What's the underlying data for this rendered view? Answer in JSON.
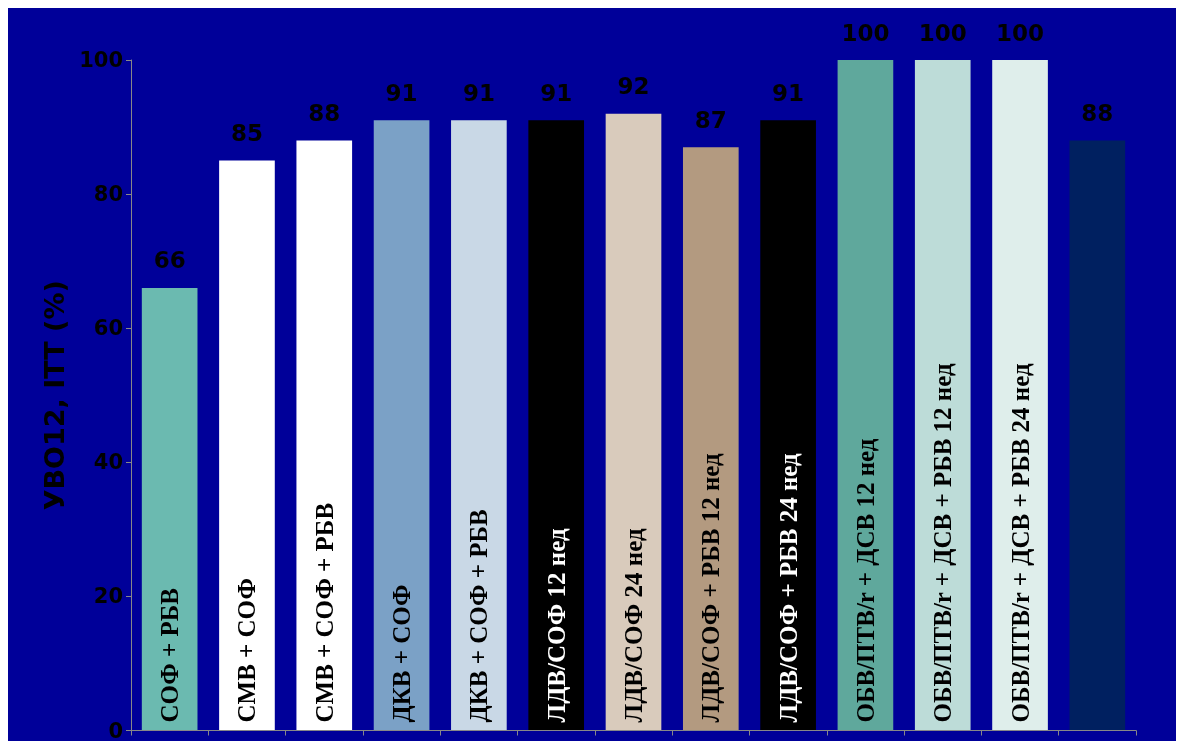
{
  "chart_data": {
    "type": "bar",
    "ylabel": "УВО12, ITT (%)",
    "categories": [
      "СОФ + РБВ",
      "СМВ + СОФ",
      "СМВ + СОФ + РБВ",
      "ДКВ + СОФ",
      "ДКВ + СОФ + РБВ",
      "ЛДВ/СОФ 12 нед",
      "ЛДВ/СОФ 24 нед",
      "ЛДВ/СОФ + РБВ 12 нед",
      "ЛДВ/СОФ + РБВ 24 нед",
      "ОБВ/ПТВ/r + ДСВ 12 нед",
      "ОБВ/ПТВ/r + ДСВ + РБВ 12 нед",
      "ОБВ/ПТВ/r + ДСВ + РБВ 24 нед",
      null
    ],
    "values": [
      66,
      85,
      88,
      91,
      91,
      91,
      92,
      87,
      91,
      100,
      100,
      100,
      88
    ],
    "colors": [
      "#6bbab0",
      "#ffffff",
      "#ffffff",
      "#7ba1c6",
      "#c9d8e6",
      "#000000",
      "#d9cbbc",
      "#b39a80",
      "#000000",
      "#5fa89c",
      "#bddcd8",
      "#dfeeeb",
      "#002060"
    ],
    "ylim": [
      0,
      100
    ],
    "yticks": [
      0,
      20,
      40,
      60,
      80,
      100
    ],
    "grid": false,
    "data_labels": true
  }
}
